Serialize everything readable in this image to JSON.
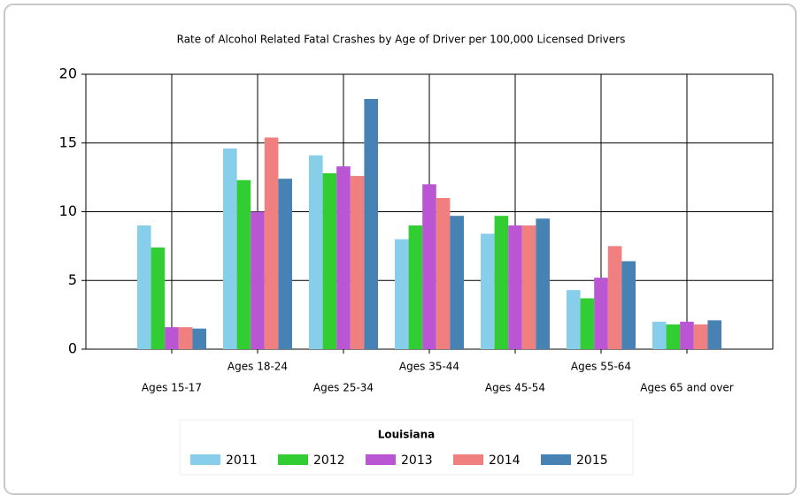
{
  "chart_data": {
    "type": "bar",
    "title": "Rate of Alcohol Related Fatal Crashes by Age of Driver per 100,000 Licensed Drivers",
    "legend_title": "Louisiana",
    "categories": [
      "Ages 15-17",
      "Ages 18-24",
      "Ages 25-34",
      "Ages 35-44",
      "Ages 45-54",
      "Ages 55-64",
      "Ages 65 and over"
    ],
    "series": [
      {
        "name": "2011",
        "color": "#87ceeb",
        "values": [
          9.0,
          14.6,
          14.1,
          8.0,
          8.4,
          4.3,
          2.0
        ]
      },
      {
        "name": "2012",
        "color": "#32cd32",
        "values": [
          7.4,
          12.3,
          12.8,
          9.0,
          9.7,
          3.7,
          1.8
        ]
      },
      {
        "name": "2013",
        "color": "#ba55d3",
        "values": [
          1.6,
          10.0,
          13.3,
          12.0,
          9.0,
          5.2,
          2.0
        ]
      },
      {
        "name": "2014",
        "color": "#f08080",
        "values": [
          1.6,
          15.4,
          12.6,
          11.0,
          9.0,
          7.5,
          1.8
        ]
      },
      {
        "name": "2015",
        "color": "#4682b4",
        "values": [
          1.5,
          12.4,
          18.2,
          9.7,
          9.5,
          6.4,
          2.1
        ]
      }
    ],
    "ylim": [
      0,
      20
    ],
    "yticks": [
      0,
      5,
      10,
      15,
      20
    ],
    "grid": true,
    "legend": "bottom"
  }
}
